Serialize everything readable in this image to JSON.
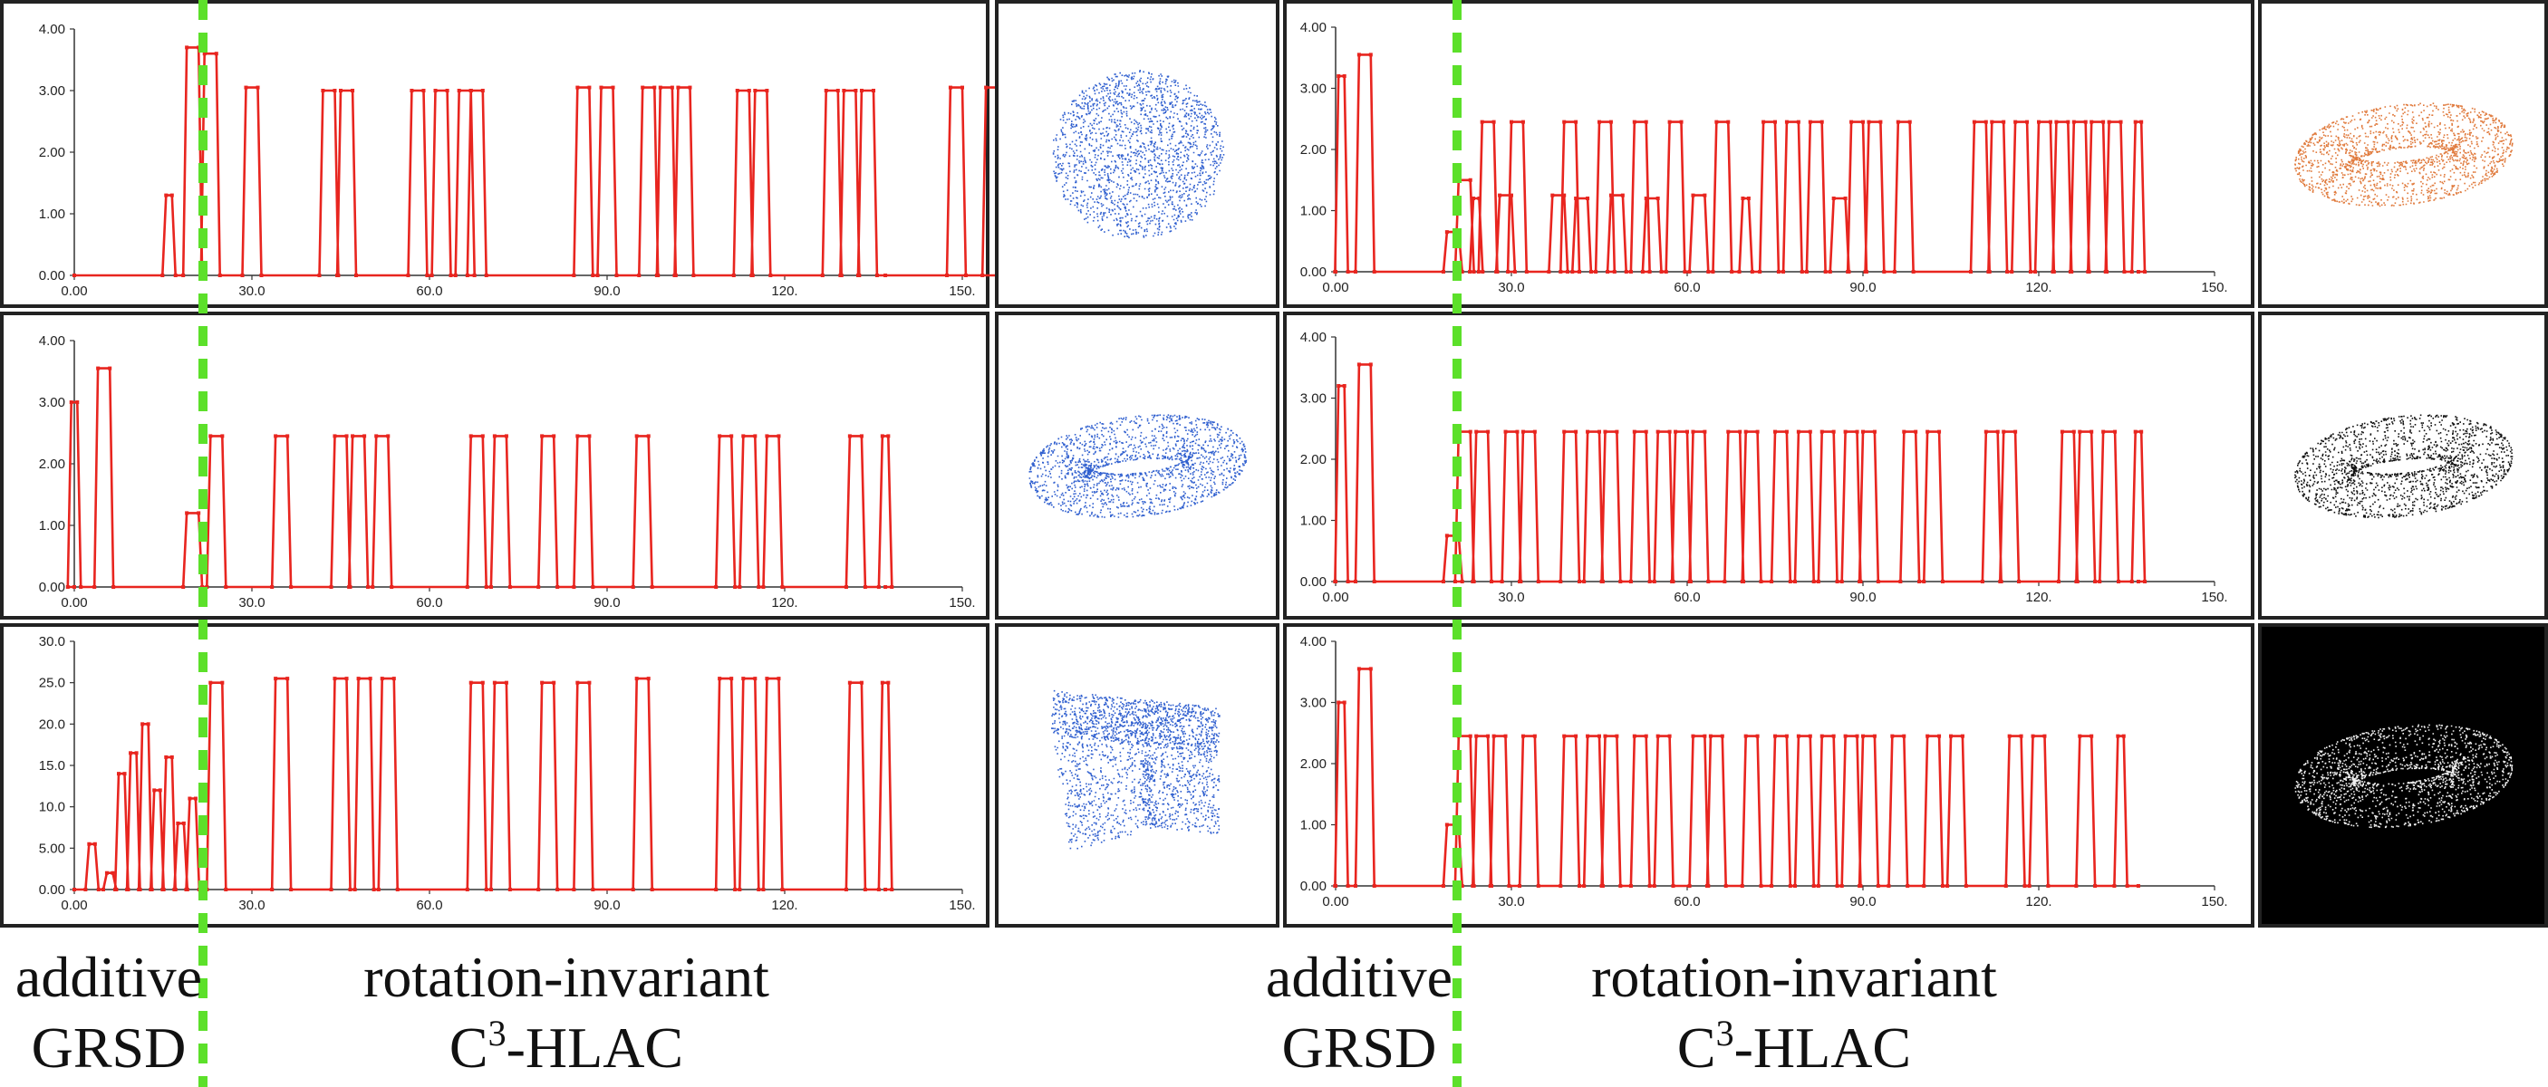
{
  "colors": {
    "series": "#e8251f",
    "divider": "#5ce02a",
    "blue_cloud": "#2f5fcf",
    "orange_cloud": "#e07a3c"
  },
  "captions": {
    "left": {
      "line1": "additive",
      "line2": "GRSD",
      "right1": "rotation-invariant",
      "right2_pre": "C",
      "right2_sup": "3",
      "right2_post": "-HLAC"
    },
    "right": {
      "line1": "additive",
      "line2": "GRSD",
      "right1": "rotation-invariant",
      "right2_pre": "C",
      "right2_sup": "3",
      "right2_post": "-HLAC"
    }
  },
  "thumbnails": [
    {
      "icon": "blue-sphere-point-cloud",
      "bg": "#ffffff"
    },
    {
      "icon": "blue-torus-point-cloud",
      "bg": "#ffffff"
    },
    {
      "icon": "blue-cube-point-cloud",
      "bg": "#ffffff"
    },
    {
      "icon": "orange-torus-point-cloud",
      "bg": "#ffffff"
    },
    {
      "icon": "black-torus-point-cloud",
      "bg": "#ffffff"
    },
    {
      "icon": "white-torus-on-black",
      "bg": "#000000"
    }
  ],
  "chart_data": [
    {
      "type": "line",
      "panel": "left-top",
      "xlim": [
        0,
        150
      ],
      "ylim": [
        0,
        4
      ],
      "xticks": [
        "0.00",
        "30.0",
        "60.0",
        "90.0",
        "120.",
        "150."
      ],
      "yticks": [
        "0.00",
        "1.00",
        "2.00",
        "3.00",
        "4.00"
      ],
      "x_end": 137,
      "spikes": [
        [
          16,
          1.3,
          1
        ],
        [
          20,
          3.7,
          2
        ],
        [
          23,
          3.6,
          2
        ],
        [
          30,
          3.05,
          2
        ],
        [
          43,
          3.0,
          2
        ],
        [
          46,
          3.0,
          2
        ],
        [
          58,
          3.0,
          2
        ],
        [
          62,
          3.0,
          2
        ],
        [
          66,
          3.0,
          2
        ],
        [
          68,
          3.0,
          2
        ],
        [
          86,
          3.05,
          2
        ],
        [
          90,
          3.05,
          2
        ],
        [
          97,
          3.05,
          2
        ],
        [
          100,
          3.05,
          2
        ],
        [
          103,
          3.05,
          2
        ],
        [
          113,
          3.0,
          2
        ],
        [
          116,
          3.0,
          2
        ],
        [
          128,
          3.0,
          2
        ],
        [
          131,
          3.0,
          2
        ],
        [
          134,
          3.0,
          2
        ],
        [
          149,
          3.05,
          2
        ],
        [
          155,
          3.05,
          2
        ]
      ]
    },
    {
      "type": "line",
      "panel": "right-top",
      "xlim": [
        0,
        150
      ],
      "ylim": [
        0,
        4
      ],
      "xticks": [
        "0.00",
        "30.0",
        "60.0",
        "90.0",
        "120.",
        "150."
      ],
      "yticks": [
        "0.00",
        "1.00",
        "2.00",
        "3.00",
        "4.00"
      ],
      "x_end": 137,
      "spikes": [
        [
          1,
          3.2,
          1
        ],
        [
          5,
          3.55,
          2
        ],
        [
          20,
          0.65,
          2
        ],
        [
          22,
          1.5,
          2
        ],
        [
          24,
          1.2,
          1
        ],
        [
          26,
          2.45,
          2
        ],
        [
          29,
          1.25,
          2
        ],
        [
          31,
          2.45,
          2
        ],
        [
          38,
          1.25,
          2
        ],
        [
          40,
          2.45,
          2
        ],
        [
          42,
          1.2,
          2
        ],
        [
          46,
          2.45,
          2
        ],
        [
          48,
          1.25,
          2
        ],
        [
          52,
          2.45,
          2
        ],
        [
          54,
          1.2,
          2
        ],
        [
          58,
          2.45,
          2
        ],
        [
          62,
          1.25,
          2
        ],
        [
          66,
          2.45,
          2
        ],
        [
          70,
          1.2,
          1
        ],
        [
          74,
          2.45,
          2
        ],
        [
          78,
          2.45,
          2
        ],
        [
          82,
          2.45,
          2
        ],
        [
          86,
          1.2,
          2
        ],
        [
          89,
          2.45,
          2
        ],
        [
          92,
          2.45,
          2
        ],
        [
          97,
          2.45,
          2
        ],
        [
          110,
          2.45,
          2
        ],
        [
          113,
          2.45,
          2
        ],
        [
          117,
          2.45,
          2
        ],
        [
          121,
          2.45,
          2
        ],
        [
          124,
          2.45,
          2
        ],
        [
          127,
          2.45,
          2
        ],
        [
          130,
          2.45,
          2
        ],
        [
          133,
          2.45,
          2
        ],
        [
          137,
          2.45,
          1
        ]
      ]
    },
    {
      "type": "line",
      "panel": "left-middle",
      "xlim": [
        0,
        150
      ],
      "ylim": [
        0,
        4
      ],
      "xticks": [
        "0.00",
        "30.0",
        "60.0",
        "90.0",
        "120.",
        "150."
      ],
      "yticks": [
        "0.00",
        "1.00",
        "2.00",
        "3.00",
        "4.00"
      ],
      "x_end": 137,
      "spikes": [
        [
          0,
          3.0,
          1
        ],
        [
          5,
          3.55,
          2
        ],
        [
          20,
          1.2,
          2
        ],
        [
          24,
          2.45,
          2
        ],
        [
          35,
          2.45,
          2
        ],
        [
          45,
          2.45,
          2
        ],
        [
          48,
          2.45,
          2
        ],
        [
          52,
          2.45,
          2
        ],
        [
          68,
          2.45,
          2
        ],
        [
          72,
          2.45,
          2
        ],
        [
          80,
          2.45,
          2
        ],
        [
          86,
          2.45,
          2
        ],
        [
          96,
          2.45,
          2
        ],
        [
          110,
          2.45,
          2
        ],
        [
          114,
          2.45,
          2
        ],
        [
          118,
          2.45,
          2
        ],
        [
          132,
          2.45,
          2
        ],
        [
          137,
          2.45,
          1
        ]
      ]
    },
    {
      "type": "line",
      "panel": "right-middle",
      "xlim": [
        0,
        150
      ],
      "ylim": [
        0,
        4
      ],
      "xticks": [
        "0.00",
        "30.0",
        "60.0",
        "90.0",
        "120.",
        "150."
      ],
      "yticks": [
        "0.00",
        "1.00",
        "2.00",
        "3.00",
        "4.00"
      ],
      "x_end": 137,
      "spikes": [
        [
          1,
          3.2,
          1
        ],
        [
          5,
          3.55,
          2
        ],
        [
          20,
          0.75,
          2
        ],
        [
          22,
          2.45,
          2
        ],
        [
          25,
          2.45,
          2
        ],
        [
          30,
          2.45,
          2
        ],
        [
          33,
          2.45,
          2
        ],
        [
          40,
          2.45,
          2
        ],
        [
          44,
          2.45,
          2
        ],
        [
          47,
          2.45,
          2
        ],
        [
          52,
          2.45,
          2
        ],
        [
          56,
          2.45,
          2
        ],
        [
          59,
          2.45,
          2
        ],
        [
          62,
          2.45,
          2
        ],
        [
          68,
          2.45,
          2
        ],
        [
          71,
          2.45,
          2
        ],
        [
          76,
          2.45,
          2
        ],
        [
          80,
          2.45,
          2
        ],
        [
          84,
          2.45,
          2
        ],
        [
          88,
          2.45,
          2
        ],
        [
          91,
          2.45,
          2
        ],
        [
          98,
          2.45,
          2
        ],
        [
          102,
          2.45,
          2
        ],
        [
          112,
          2.45,
          2
        ],
        [
          115,
          2.45,
          2
        ],
        [
          125,
          2.45,
          2
        ],
        [
          128,
          2.45,
          2
        ],
        [
          132,
          2.45,
          2
        ],
        [
          137,
          2.45,
          1
        ]
      ]
    },
    {
      "type": "line",
      "panel": "left-bottom",
      "xlim": [
        0,
        150
      ],
      "ylim": [
        0,
        30
      ],
      "xticks": [
        "0.00",
        "30.0",
        "60.0",
        "90.0",
        "120.",
        "150."
      ],
      "yticks": [
        "0.00",
        "5.00",
        "10.0",
        "15.0",
        "20.0",
        "25.0",
        "30.0"
      ],
      "x_end": 137,
      "spikes": [
        [
          3,
          5.5,
          1
        ],
        [
          6,
          2.0,
          1
        ],
        [
          8,
          14.0,
          1
        ],
        [
          10,
          16.5,
          1
        ],
        [
          12,
          20.0,
          1
        ],
        [
          14,
          12.0,
          1
        ],
        [
          16,
          16.0,
          1
        ],
        [
          18,
          8.0,
          1
        ],
        [
          20,
          11.0,
          1
        ],
        [
          24,
          25.0,
          2
        ],
        [
          35,
          25.5,
          2
        ],
        [
          45,
          25.5,
          2
        ],
        [
          49,
          25.5,
          2
        ],
        [
          53,
          25.5,
          2
        ],
        [
          68,
          25.0,
          2
        ],
        [
          72,
          25.0,
          2
        ],
        [
          80,
          25.0,
          2
        ],
        [
          86,
          25.0,
          2
        ],
        [
          96,
          25.5,
          2
        ],
        [
          110,
          25.5,
          2
        ],
        [
          114,
          25.5,
          2
        ],
        [
          118,
          25.5,
          2
        ],
        [
          132,
          25.0,
          2
        ],
        [
          137,
          25.0,
          1
        ]
      ]
    },
    {
      "type": "line",
      "panel": "right-bottom",
      "xlim": [
        0,
        150
      ],
      "ylim": [
        0,
        4
      ],
      "xticks": [
        "0.00",
        "30.0",
        "60.0",
        "90.0",
        "120.",
        "150."
      ],
      "yticks": [
        "0.00",
        "1.00",
        "2.00",
        "3.00",
        "4.00"
      ],
      "x_end": 137,
      "spikes": [
        [
          1,
          3.0,
          1
        ],
        [
          5,
          3.55,
          2
        ],
        [
          20,
          1.0,
          2
        ],
        [
          22,
          2.45,
          2
        ],
        [
          25,
          2.45,
          2
        ],
        [
          28,
          2.45,
          2
        ],
        [
          33,
          2.45,
          2
        ],
        [
          40,
          2.45,
          2
        ],
        [
          44,
          2.45,
          2
        ],
        [
          47,
          2.45,
          2
        ],
        [
          52,
          2.45,
          2
        ],
        [
          56,
          2.45,
          2
        ],
        [
          62,
          2.45,
          2
        ],
        [
          65,
          2.45,
          2
        ],
        [
          71,
          2.45,
          2
        ],
        [
          76,
          2.45,
          2
        ],
        [
          80,
          2.45,
          2
        ],
        [
          84,
          2.45,
          2
        ],
        [
          88,
          2.45,
          2
        ],
        [
          91,
          2.45,
          2
        ],
        [
          96,
          2.45,
          2
        ],
        [
          102,
          2.45,
          2
        ],
        [
          106,
          2.45,
          2
        ],
        [
          116,
          2.45,
          2
        ],
        [
          120,
          2.45,
          2
        ],
        [
          128,
          2.45,
          2
        ],
        [
          134,
          2.45,
          1
        ]
      ]
    }
  ]
}
